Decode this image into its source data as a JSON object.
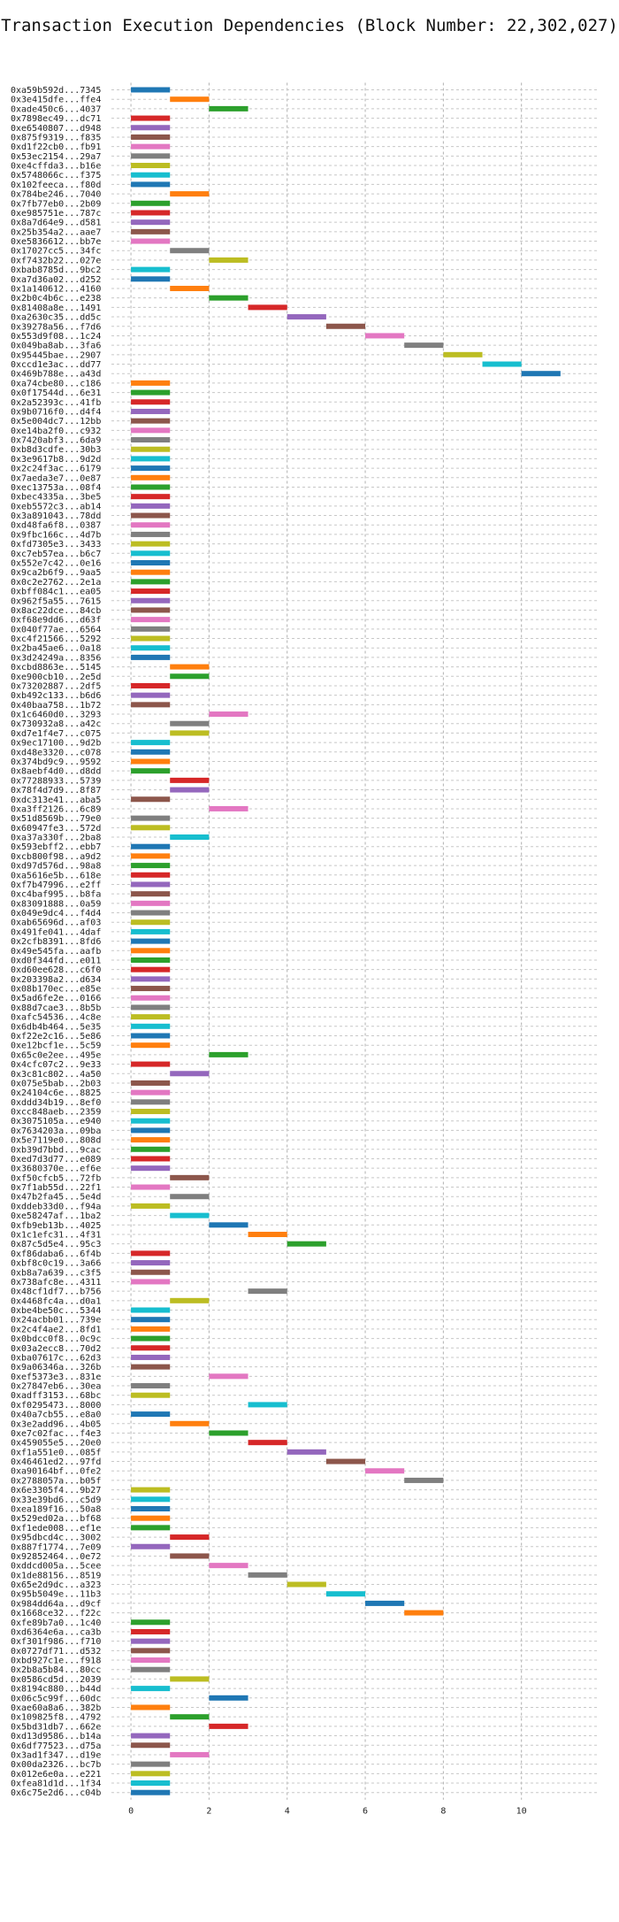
{
  "chart_data": {
    "type": "bar",
    "orientation": "horizontal-gantt",
    "title": "Transaction Execution Dependencies (Block Number: 22,302,027)",
    "xlabel": "",
    "ylabel": "",
    "xlim": [
      -0.5,
      12
    ],
    "xticks": [
      0,
      2,
      4,
      6,
      8,
      10
    ],
    "grid": true,
    "legend": "none",
    "bar_duration": 1,
    "colors": [
      "#1f77b4",
      "#ff7f0e",
      "#2ca02c",
      "#d62728",
      "#9467bd",
      "#8c564b",
      "#e377c2",
      "#7f7f7f",
      "#bcbd22",
      "#17becf"
    ],
    "transactions": [
      {
        "tx": "0xa59b592d...7345",
        "start": 0,
        "color": 0
      },
      {
        "tx": "0x3e415dfe...ffe4",
        "start": 1,
        "color": 1
      },
      {
        "tx": "0xade450c6...4037",
        "start": 2,
        "color": 2
      },
      {
        "tx": "0x7898ec49...dc71",
        "start": 0,
        "color": 3
      },
      {
        "tx": "0xe6540807...d948",
        "start": 0,
        "color": 4
      },
      {
        "tx": "0x875f9319...f835",
        "start": 0,
        "color": 5
      },
      {
        "tx": "0xd1f22cb0...fb91",
        "start": 0,
        "color": 6
      },
      {
        "tx": "0x53ec2154...29a7",
        "start": 0,
        "color": 7
      },
      {
        "tx": "0xe4cffda3...b16e",
        "start": 0,
        "color": 8
      },
      {
        "tx": "0x5748066c...f375",
        "start": 0,
        "color": 9
      },
      {
        "tx": "0x102feeca...f80d",
        "start": 0,
        "color": 0
      },
      {
        "tx": "0x784be246...7040",
        "start": 1,
        "color": 1
      },
      {
        "tx": "0x7fb77eb0...2b09",
        "start": 0,
        "color": 2
      },
      {
        "tx": "0xe985751e...787c",
        "start": 0,
        "color": 3
      },
      {
        "tx": "0x8a7d64e9...d581",
        "start": 0,
        "color": 4
      },
      {
        "tx": "0x25b354a2...aae7",
        "start": 0,
        "color": 5
      },
      {
        "tx": "0xe5836612...bb7e",
        "start": 0,
        "color": 6
      },
      {
        "tx": "0x17027cc5...34fc",
        "start": 1,
        "color": 7
      },
      {
        "tx": "0xf7432b22...027e",
        "start": 2,
        "color": 8
      },
      {
        "tx": "0xbab8785d...9bc2",
        "start": 0,
        "color": 9
      },
      {
        "tx": "0xa7d36a02...d252",
        "start": 0,
        "color": 0
      },
      {
        "tx": "0x1a140612...4160",
        "start": 1,
        "color": 1
      },
      {
        "tx": "0x2b0c4b6c...e238",
        "start": 2,
        "color": 2
      },
      {
        "tx": "0x81408a8e...1491",
        "start": 3,
        "color": 3
      },
      {
        "tx": "0xa2630c35...dd5c",
        "start": 4,
        "color": 4
      },
      {
        "tx": "0x39278a56...f7d6",
        "start": 5,
        "color": 5
      },
      {
        "tx": "0x553d9f08...1c24",
        "start": 6,
        "color": 6
      },
      {
        "tx": "0x049ba8ab...3fa6",
        "start": 7,
        "color": 7
      },
      {
        "tx": "0x95445bae...2907",
        "start": 8,
        "color": 8
      },
      {
        "tx": "0xccd1e3ac...dd77",
        "start": 9,
        "color": 9
      },
      {
        "tx": "0x469b788e...a43d",
        "start": 10,
        "color": 0
      },
      {
        "tx": "0xa74cbe80...c186",
        "start": 0,
        "color": 1
      },
      {
        "tx": "0x0f17544d...6e31",
        "start": 0,
        "color": 2
      },
      {
        "tx": "0x2a52393c...41fb",
        "start": 0,
        "color": 3
      },
      {
        "tx": "0x9b0716f0...d4f4",
        "start": 0,
        "color": 4
      },
      {
        "tx": "0x5e004dc7...12bb",
        "start": 0,
        "color": 5
      },
      {
        "tx": "0xe14ba2f0...c932",
        "start": 0,
        "color": 6
      },
      {
        "tx": "0x7420abf3...6da9",
        "start": 0,
        "color": 7
      },
      {
        "tx": "0xb8d3cdfe...30b3",
        "start": 0,
        "color": 8
      },
      {
        "tx": "0x3e9617b8...9d2d",
        "start": 0,
        "color": 9
      },
      {
        "tx": "0x2c24f3ac...6179",
        "start": 0,
        "color": 0
      },
      {
        "tx": "0x7aeda3e7...0e87",
        "start": 0,
        "color": 1
      },
      {
        "tx": "0xec13753a...08f4",
        "start": 0,
        "color": 2
      },
      {
        "tx": "0xbec4335a...3be5",
        "start": 0,
        "color": 3
      },
      {
        "tx": "0xeb5572c3...ab14",
        "start": 0,
        "color": 4
      },
      {
        "tx": "0x3a891043...78dd",
        "start": 0,
        "color": 5
      },
      {
        "tx": "0xd48fa6f8...0387",
        "start": 0,
        "color": 6
      },
      {
        "tx": "0x9fbc166c...4d7b",
        "start": 0,
        "color": 7
      },
      {
        "tx": "0xfd7305e3...3433",
        "start": 0,
        "color": 8
      },
      {
        "tx": "0xc7eb57ea...b6c7",
        "start": 0,
        "color": 9
      },
      {
        "tx": "0x552e7c42...0e16",
        "start": 0,
        "color": 0
      },
      {
        "tx": "0x9ca2b6f9...9aa5",
        "start": 0,
        "color": 1
      },
      {
        "tx": "0x0c2e2762...2e1a",
        "start": 0,
        "color": 2
      },
      {
        "tx": "0xbff084c1...ea05",
        "start": 0,
        "color": 3
      },
      {
        "tx": "0x962f5a55...7615",
        "start": 0,
        "color": 4
      },
      {
        "tx": "0x8ac22dce...84cb",
        "start": 0,
        "color": 5
      },
      {
        "tx": "0xf68e9dd6...d63f",
        "start": 0,
        "color": 6
      },
      {
        "tx": "0x040f77ae...6564",
        "start": 0,
        "color": 7
      },
      {
        "tx": "0xc4f21566...5292",
        "start": 0,
        "color": 8
      },
      {
        "tx": "0x2ba45ae6...0a18",
        "start": 0,
        "color": 9
      },
      {
        "tx": "0x3d24249a...8356",
        "start": 0,
        "color": 0
      },
      {
        "tx": "0xcbd8863e...5145",
        "start": 1,
        "color": 1
      },
      {
        "tx": "0xe900cb10...2e5d",
        "start": 1,
        "color": 2
      },
      {
        "tx": "0x73202887...2df5",
        "start": 0,
        "color": 3
      },
      {
        "tx": "0xb492c133...b6d6",
        "start": 0,
        "color": 4
      },
      {
        "tx": "0x40baa758...1b72",
        "start": 0,
        "color": 5
      },
      {
        "tx": "0x1c6460d0...3293",
        "start": 2,
        "color": 6
      },
      {
        "tx": "0x730932a8...a42c",
        "start": 1,
        "color": 7
      },
      {
        "tx": "0xd7e1f4e7...c075",
        "start": 1,
        "color": 8
      },
      {
        "tx": "0x9ec17100...9d2b",
        "start": 0,
        "color": 9
      },
      {
        "tx": "0xd48e3320...c078",
        "start": 0,
        "color": 0
      },
      {
        "tx": "0x374bd9c9...9592",
        "start": 0,
        "color": 1
      },
      {
        "tx": "0x8aebf4d0...d8dd",
        "start": 0,
        "color": 2
      },
      {
        "tx": "0x77288933...5739",
        "start": 1,
        "color": 3
      },
      {
        "tx": "0x78f4d7d9...8f87",
        "start": 1,
        "color": 4
      },
      {
        "tx": "0xdc313e41...aba5",
        "start": 0,
        "color": 5
      },
      {
        "tx": "0xa3ff2126...6c89",
        "start": 2,
        "color": 6
      },
      {
        "tx": "0x51d8569b...79e0",
        "start": 0,
        "color": 7
      },
      {
        "tx": "0x60947fe3...572d",
        "start": 0,
        "color": 8
      },
      {
        "tx": "0xa37a330f...2ba8",
        "start": 1,
        "color": 9
      },
      {
        "tx": "0x593ebff2...ebb7",
        "start": 0,
        "color": 0
      },
      {
        "tx": "0xcb800f98...a9d2",
        "start": 0,
        "color": 1
      },
      {
        "tx": "0xd97d576d...98a8",
        "start": 0,
        "color": 2
      },
      {
        "tx": "0xa5616e5b...618e",
        "start": 0,
        "color": 3
      },
      {
        "tx": "0xf7b47996...e2ff",
        "start": 0,
        "color": 4
      },
      {
        "tx": "0xc4baf995...b8fa",
        "start": 0,
        "color": 5
      },
      {
        "tx": "0x83091888...0a59",
        "start": 0,
        "color": 6
      },
      {
        "tx": "0x049e9dc4...f4d4",
        "start": 0,
        "color": 7
      },
      {
        "tx": "0xab65696d...af03",
        "start": 0,
        "color": 8
      },
      {
        "tx": "0x491fe041...4daf",
        "start": 0,
        "color": 9
      },
      {
        "tx": "0x2cfb8391...8fd6",
        "start": 0,
        "color": 0
      },
      {
        "tx": "0x49e545fa...aafb",
        "start": 0,
        "color": 1
      },
      {
        "tx": "0xd0f344fd...e011",
        "start": 0,
        "color": 2
      },
      {
        "tx": "0xd60ee628...c6f0",
        "start": 0,
        "color": 3
      },
      {
        "tx": "0x203398a2...d634",
        "start": 0,
        "color": 4
      },
      {
        "tx": "0x08b170ec...e85e",
        "start": 0,
        "color": 5
      },
      {
        "tx": "0x5ad6fe2e...0166",
        "start": 0,
        "color": 6
      },
      {
        "tx": "0x88d7cae3...8b5b",
        "start": 0,
        "color": 7
      },
      {
        "tx": "0xafc54536...4c8e",
        "start": 0,
        "color": 8
      },
      {
        "tx": "0x6db4b464...5e35",
        "start": 0,
        "color": 9
      },
      {
        "tx": "0xf22e2c16...5e86",
        "start": 0,
        "color": 0
      },
      {
        "tx": "0xe12bcf1e...5c59",
        "start": 0,
        "color": 1
      },
      {
        "tx": "0x65c0e2ee...495e",
        "start": 2,
        "color": 2
      },
      {
        "tx": "0x4cfc07c2...9e33",
        "start": 0,
        "color": 3
      },
      {
        "tx": "0x3c81c802...4a50",
        "start": 1,
        "color": 4
      },
      {
        "tx": "0x075e5bab...2b03",
        "start": 0,
        "color": 5
      },
      {
        "tx": "0x24104c6e...8825",
        "start": 0,
        "color": 6
      },
      {
        "tx": "0xddd34b19...8ef0",
        "start": 0,
        "color": 7
      },
      {
        "tx": "0xcc848aeb...2359",
        "start": 0,
        "color": 8
      },
      {
        "tx": "0x3075105a...e940",
        "start": 0,
        "color": 9
      },
      {
        "tx": "0x7634203a...09ba",
        "start": 0,
        "color": 0
      },
      {
        "tx": "0x5e7119e0...808d",
        "start": 0,
        "color": 1
      },
      {
        "tx": "0xb39d7bbd...9cac",
        "start": 0,
        "color": 2
      },
      {
        "tx": "0xed7d3d77...e089",
        "start": 0,
        "color": 3
      },
      {
        "tx": "0x3680370e...ef6e",
        "start": 0,
        "color": 4
      },
      {
        "tx": "0xf50cfcb5...72fb",
        "start": 1,
        "color": 5
      },
      {
        "tx": "0x7f1ab55d...22f1",
        "start": 0,
        "color": 6
      },
      {
        "tx": "0x47b2fa45...5e4d",
        "start": 1,
        "color": 7
      },
      {
        "tx": "0xddeb33d0...f94a",
        "start": 0,
        "color": 8
      },
      {
        "tx": "0xe58247af...1ba2",
        "start": 1,
        "color": 9
      },
      {
        "tx": "0xfb9eb13b...4025",
        "start": 2,
        "color": 0
      },
      {
        "tx": "0x1c1efc31...4f31",
        "start": 3,
        "color": 1
      },
      {
        "tx": "0x87c5d5e4...95c3",
        "start": 4,
        "color": 2
      },
      {
        "tx": "0xf86daba6...6f4b",
        "start": 0,
        "color": 3
      },
      {
        "tx": "0xbf8c0c19...3a66",
        "start": 0,
        "color": 4
      },
      {
        "tx": "0xb8a7a639...c3f5",
        "start": 0,
        "color": 5
      },
      {
        "tx": "0x738afc8e...4311",
        "start": 0,
        "color": 6
      },
      {
        "tx": "0x48cf1df7...b756",
        "start": 3,
        "color": 7
      },
      {
        "tx": "0x4468fc4a...d0a1",
        "start": 1,
        "color": 8
      },
      {
        "tx": "0xbe4be50c...5344",
        "start": 0,
        "color": 9
      },
      {
        "tx": "0x24acbb01...739e",
        "start": 0,
        "color": 0
      },
      {
        "tx": "0x2c4f4ae2...8fd1",
        "start": 0,
        "color": 1
      },
      {
        "tx": "0x0bdcc0f8...0c9c",
        "start": 0,
        "color": 2
      },
      {
        "tx": "0x03a2ecc8...70d2",
        "start": 0,
        "color": 3
      },
      {
        "tx": "0xba07617c...62d3",
        "start": 0,
        "color": 4
      },
      {
        "tx": "0x9a06346a...326b",
        "start": 0,
        "color": 5
      },
      {
        "tx": "0xef5373e3...831e",
        "start": 2,
        "color": 6
      },
      {
        "tx": "0x27847eb6...30ea",
        "start": 0,
        "color": 7
      },
      {
        "tx": "0xadff3153...68bc",
        "start": 0,
        "color": 8
      },
      {
        "tx": "0xf0295473...8000",
        "start": 3,
        "color": 9
      },
      {
        "tx": "0x40a7cb55...e8a0",
        "start": 0,
        "color": 0
      },
      {
        "tx": "0x3e2add96...4b05",
        "start": 1,
        "color": 1
      },
      {
        "tx": "0xe7c02fac...f4e3",
        "start": 2,
        "color": 2
      },
      {
        "tx": "0x459055e5...20e0",
        "start": 3,
        "color": 3
      },
      {
        "tx": "0xf1a551e0...085f",
        "start": 4,
        "color": 4
      },
      {
        "tx": "0x46461ed2...97fd",
        "start": 5,
        "color": 5
      },
      {
        "tx": "0xa90164bf...0fe2",
        "start": 6,
        "color": 6
      },
      {
        "tx": "0x2788057a...b05f",
        "start": 7,
        "color": 7
      },
      {
        "tx": "0x6e3305f4...9b27",
        "start": 0,
        "color": 8
      },
      {
        "tx": "0x33e39bd6...c5d9",
        "start": 0,
        "color": 9
      },
      {
        "tx": "0xea189f16...50a8",
        "start": 0,
        "color": 0
      },
      {
        "tx": "0x529ed02a...bf68",
        "start": 0,
        "color": 1
      },
      {
        "tx": "0xf1ede008...ef1e",
        "start": 0,
        "color": 2
      },
      {
        "tx": "0x95dbcd4c...3002",
        "start": 1,
        "color": 3
      },
      {
        "tx": "0x887f1774...7e09",
        "start": 0,
        "color": 4
      },
      {
        "tx": "0x92852464...0e72",
        "start": 1,
        "color": 5
      },
      {
        "tx": "0xddcd005a...5cee",
        "start": 2,
        "color": 6
      },
      {
        "tx": "0x1de88156...8519",
        "start": 3,
        "color": 7
      },
      {
        "tx": "0x65e2d9dc...a323",
        "start": 4,
        "color": 8
      },
      {
        "tx": "0x95b5049e...11b3",
        "start": 5,
        "color": 9
      },
      {
        "tx": "0x984dd64a...d9cf",
        "start": 6,
        "color": 0
      },
      {
        "tx": "0x1668ce32...f22c",
        "start": 7,
        "color": 1
      },
      {
        "tx": "0xfe89b7a0...1c40",
        "start": 0,
        "color": 2
      },
      {
        "tx": "0xd6364e6a...ca3b",
        "start": 0,
        "color": 3
      },
      {
        "tx": "0xf301f986...f710",
        "start": 0,
        "color": 4
      },
      {
        "tx": "0x0727df71...d532",
        "start": 0,
        "color": 5
      },
      {
        "tx": "0xbd927c1e...f918",
        "start": 0,
        "color": 6
      },
      {
        "tx": "0x2b8a5b84...80cc",
        "start": 0,
        "color": 7
      },
      {
        "tx": "0x0586cd5d...2039",
        "start": 1,
        "color": 8
      },
      {
        "tx": "0x8194c880...b44d",
        "start": 0,
        "color": 9
      },
      {
        "tx": "0x06c5c99f...60dc",
        "start": 2,
        "color": 0
      },
      {
        "tx": "0xae60a8a6...382b",
        "start": 0,
        "color": 1
      },
      {
        "tx": "0x109825f8...4792",
        "start": 1,
        "color": 2
      },
      {
        "tx": "0x5bd31db7...662e",
        "start": 2,
        "color": 3
      },
      {
        "tx": "0xd13d9586...b14a",
        "start": 0,
        "color": 4
      },
      {
        "tx": "0x6df77523...d75a",
        "start": 0,
        "color": 5
      },
      {
        "tx": "0x3ad1f347...d19e",
        "start": 1,
        "color": 6
      },
      {
        "tx": "0x00da2326...bc7b",
        "start": 0,
        "color": 7
      },
      {
        "tx": "0x012e6e0a...e221",
        "start": 0,
        "color": 8
      },
      {
        "tx": "0xfea81d1d...1f34",
        "start": 0,
        "color": 9
      },
      {
        "tx": "0x6c75e2d6...c04b",
        "start": 0,
        "color": 0
      }
    ]
  }
}
